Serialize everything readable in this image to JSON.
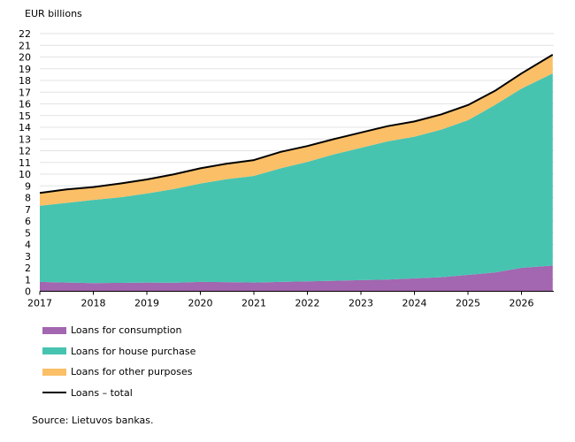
{
  "chart_data": {
    "type": "area",
    "stacked": true,
    "ylabel": "EUR billions",
    "ylim": [
      0,
      22
    ],
    "yticks": [
      0,
      1,
      2,
      3,
      4,
      5,
      6,
      7,
      8,
      9,
      10,
      11,
      12,
      13,
      14,
      15,
      16,
      17,
      18,
      19,
      20,
      21,
      22
    ],
    "xlabels": [
      "2017",
      "2018",
      "2019",
      "2020",
      "2021",
      "2022",
      "2023",
      "2024",
      "2025",
      "2026"
    ],
    "grid": true,
    "legend_position": "bottom",
    "dates": [
      "2017-01",
      "2017-07",
      "2018-01",
      "2018-07",
      "2019-01",
      "2019-07",
      "2020-01",
      "2020-07",
      "2021-01",
      "2021-07",
      "2022-01",
      "2022-07",
      "2023-01",
      "2023-07",
      "2024-01",
      "2024-07",
      "2025-01",
      "2025-07",
      "2026-01",
      "2026-08"
    ],
    "series": [
      {
        "name": "Loans for consumption",
        "color": "#a366b0",
        "values": [
          0.8,
          0.75,
          0.7,
          0.72,
          0.75,
          0.73,
          0.8,
          0.78,
          0.75,
          0.8,
          0.85,
          0.9,
          0.95,
          1.0,
          1.1,
          1.2,
          1.4,
          1.6,
          2.0,
          2.2
        ]
      },
      {
        "name": "Loans for house purchase",
        "color": "#47c4b0",
        "values": [
          6.5,
          6.8,
          7.1,
          7.3,
          7.6,
          8.0,
          8.4,
          8.8,
          9.1,
          9.7,
          10.2,
          10.8,
          11.3,
          11.8,
          12.1,
          12.6,
          13.2,
          14.3,
          15.3,
          16.4
        ]
      },
      {
        "name": "Loans for other purposes",
        "color": "#fbbf67",
        "values": [
          1.1,
          1.15,
          1.1,
          1.18,
          1.2,
          1.25,
          1.3,
          1.32,
          1.35,
          1.4,
          1.35,
          1.3,
          1.3,
          1.3,
          1.3,
          1.3,
          1.3,
          1.2,
          1.3,
          1.6
        ]
      }
    ],
    "total": {
      "name": "Loans – total",
      "color": "#000000",
      "values": [
        8.4,
        8.7,
        8.9,
        9.2,
        9.55,
        9.98,
        10.5,
        10.9,
        11.2,
        11.9,
        12.4,
        13.0,
        13.55,
        14.1,
        14.5,
        15.1,
        15.9,
        17.1,
        18.6,
        20.2
      ]
    }
  },
  "source": "Source: Lietuvos bankas."
}
